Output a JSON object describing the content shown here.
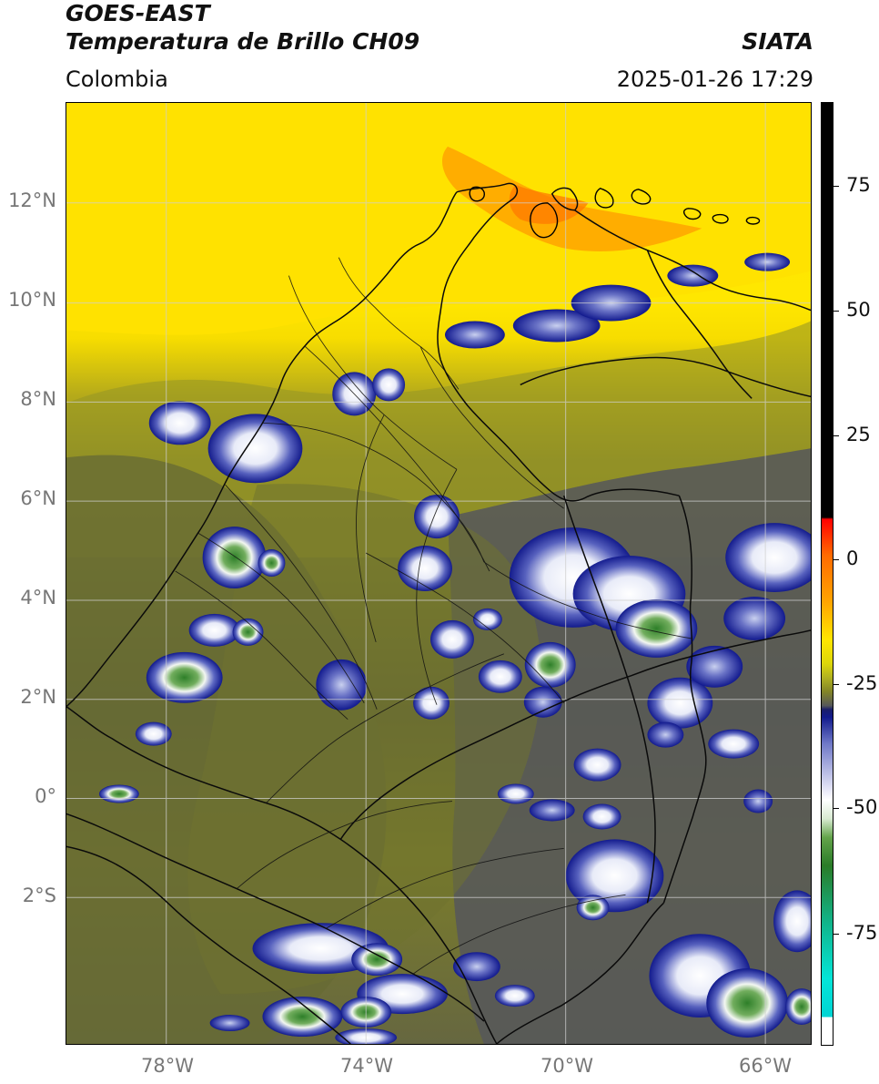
{
  "header": {
    "satellite": "GOES-EAST",
    "product": "Temperatura de Brillo CH09",
    "region": "Colombia",
    "organization": "SIATA",
    "timestamp": "2025-01-26 17:29"
  },
  "map": {
    "latitude_labels": [
      "12°N",
      "10°N",
      "8°N",
      "6°N",
      "4°N",
      "2°N",
      "0°",
      "2°S"
    ],
    "longitude_labels": [
      "78°W",
      "74°W",
      "70°W",
      "66°W"
    ],
    "bounds_description_units": "geographic degrees"
  },
  "colorbar": {
    "tick_labels": [
      "75",
      "50",
      "25",
      "0",
      "-25",
      "-50",
      "-75"
    ],
    "tick_values": [
      75,
      50,
      25,
      0,
      -25,
      -50,
      -75
    ],
    "color_stops": [
      {
        "value": 90,
        "color": "#000000"
      },
      {
        "value": 10,
        "color": "#000000"
      },
      {
        "value": 8,
        "color": "#ff0000"
      },
      {
        "value": 0,
        "color": "#ff6a00"
      },
      {
        "value": -10,
        "color": "#ffa500"
      },
      {
        "value": -18,
        "color": "#ffe600"
      },
      {
        "value": -25,
        "color": "#55575a"
      },
      {
        "value": -35,
        "color": "#111a8c"
      },
      {
        "value": -50,
        "color": "#ffffff"
      },
      {
        "value": -60,
        "color": "#63a34a"
      },
      {
        "value": -75,
        "color": "#11b48a"
      },
      {
        "value": -92,
        "color": "#00d4d4"
      }
    ]
  },
  "colors": {
    "map_frame": "#000000",
    "graticule": "#cfcfcf",
    "axis_label": "#777777",
    "warm_yellow": "#ffe400",
    "olive": "#9f9b24",
    "slate": "#55575a",
    "deep_blue": "#1a1e69"
  }
}
